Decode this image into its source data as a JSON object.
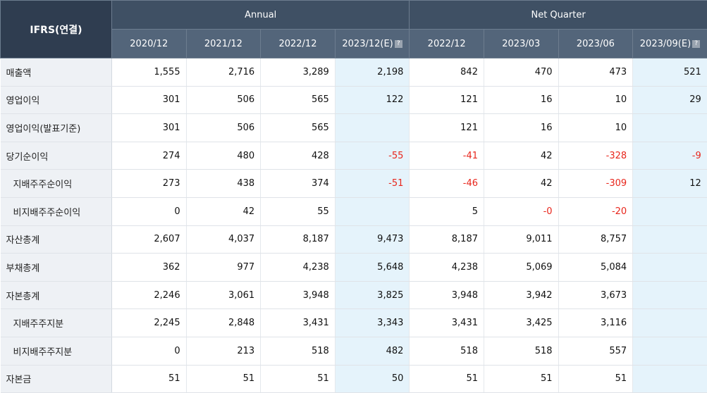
{
  "table": {
    "corner_label": "IFRS(연결)",
    "groups": [
      "Annual",
      "Net Quarter"
    ],
    "periods": [
      "2020/12",
      "2021/12",
      "2022/12",
      "2023/12(E)",
      "2022/12",
      "2023/03",
      "2023/06",
      "2023/09(E)"
    ],
    "estimate_icon": "?",
    "rows": [
      {
        "label": "매출액",
        "values": [
          "1,555",
          "2,716",
          "3,289",
          "2,198",
          "842",
          "470",
          "473",
          "521"
        ]
      },
      {
        "label": "영업이익",
        "values": [
          "301",
          "506",
          "565",
          "122",
          "121",
          "16",
          "10",
          "29"
        ]
      },
      {
        "label": "영업이익(발표기준)",
        "values": [
          "301",
          "506",
          "565",
          "",
          "121",
          "16",
          "10",
          ""
        ]
      },
      {
        "label": "당기순이익",
        "values": [
          "274",
          "480",
          "428",
          "-55",
          "-41",
          "42",
          "-328",
          "-9"
        ]
      },
      {
        "label": "지배주주순이익",
        "values": [
          "273",
          "438",
          "374",
          "-51",
          "-46",
          "42",
          "-309",
          "12"
        ]
      },
      {
        "label": "비지배주주순이익",
        "values": [
          "0",
          "42",
          "55",
          "",
          "5",
          "-0",
          "-20",
          ""
        ]
      },
      {
        "label": "자산총계",
        "values": [
          "2,607",
          "4,037",
          "8,187",
          "9,473",
          "8,187",
          "9,011",
          "8,757",
          ""
        ]
      },
      {
        "label": "부채총계",
        "values": [
          "362",
          "977",
          "4,238",
          "5,648",
          "4,238",
          "5,069",
          "5,084",
          ""
        ]
      },
      {
        "label": "자본총계",
        "values": [
          "2,246",
          "3,061",
          "3,948",
          "3,825",
          "3,948",
          "3,942",
          "3,673",
          ""
        ]
      },
      {
        "label": "지배주주지분",
        "values": [
          "2,245",
          "2,848",
          "3,431",
          "3,343",
          "3,431",
          "3,425",
          "3,116",
          ""
        ]
      },
      {
        "label": "비지배주주지분",
        "values": [
          "0",
          "213",
          "518",
          "482",
          "518",
          "518",
          "557",
          ""
        ]
      },
      {
        "label": "자본금",
        "values": [
          "51",
          "51",
          "51",
          "50",
          "51",
          "51",
          "51",
          ""
        ]
      }
    ]
  },
  "colors": {
    "header_bg": "#4a5b6f",
    "label_bg": "#eef1f5",
    "estimate_bg": "#e5f3fb",
    "negative": "#e8261c"
  }
}
